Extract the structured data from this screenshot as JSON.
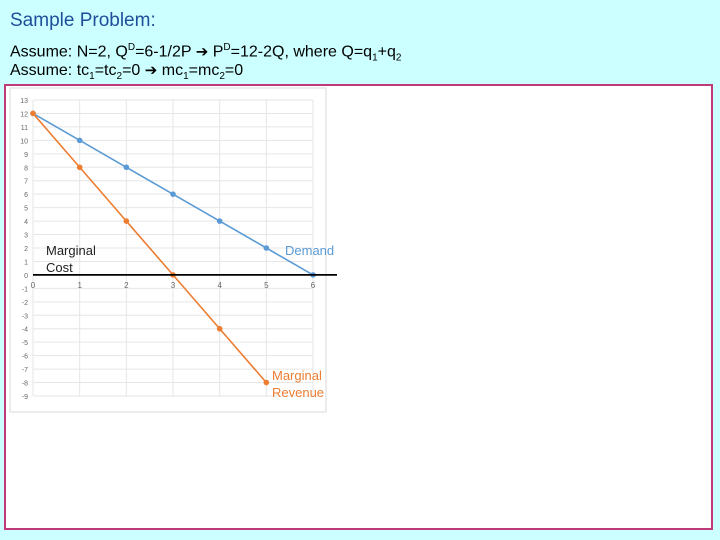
{
  "slide": {
    "title": "Sample Problem:",
    "line1": {
      "t1": "Assume: N=2,  Q",
      "sup1": "D",
      "t2": "=6-1/2P ",
      "arrow": "➔",
      "t3": " P",
      "sup2": "D",
      "t4": "=12-2Q, where Q=q",
      "sub1": "1",
      "t5": "+q",
      "sub2": "2"
    },
    "line2": {
      "t1": "Assume: tc",
      "sub1": "1",
      "t2": "=tc",
      "sub2": "2",
      "t3": "=0 ",
      "arrow": "➔",
      "t4": " mc",
      "sub3": "1",
      "t5": "=mc",
      "sub4": "2",
      "t6": "=0"
    }
  },
  "chart_data": {
    "type": "line",
    "x": [
      0,
      1,
      2,
      3,
      4,
      5,
      6
    ],
    "xlim": [
      0,
      6
    ],
    "ylim": [
      -9,
      13
    ],
    "x_tick_labels": [
      "0",
      "1",
      "2",
      "3",
      "4",
      "5",
      "6"
    ],
    "y_tick_labels": [
      "13",
      "12",
      "11",
      "10",
      "9",
      "8",
      "7",
      "6",
      "5",
      "4",
      "3",
      "2",
      "1",
      "0",
      "-1",
      "-2",
      "-3",
      "-4",
      "-5",
      "-6",
      "-7",
      "-8",
      "-9"
    ],
    "grid": true,
    "series": [
      {
        "name": "Demand",
        "color": "#5b9bd5",
        "values": [
          12,
          10,
          8,
          6,
          4,
          2,
          0
        ]
      },
      {
        "name": "Marginal Revenue",
        "color": "#ed7d31",
        "values": [
          12,
          8,
          4,
          0,
          -4,
          -8,
          null
        ]
      },
      {
        "name": "Marginal Cost",
        "color": "#000000",
        "values": [
          0,
          0,
          0,
          0,
          0,
          0,
          0
        ]
      }
    ],
    "annotations": {
      "marginal_cost": "Marginal\nCost",
      "demand": "Demand",
      "marginal_revenue": "Marginal\nRevenue"
    }
  }
}
